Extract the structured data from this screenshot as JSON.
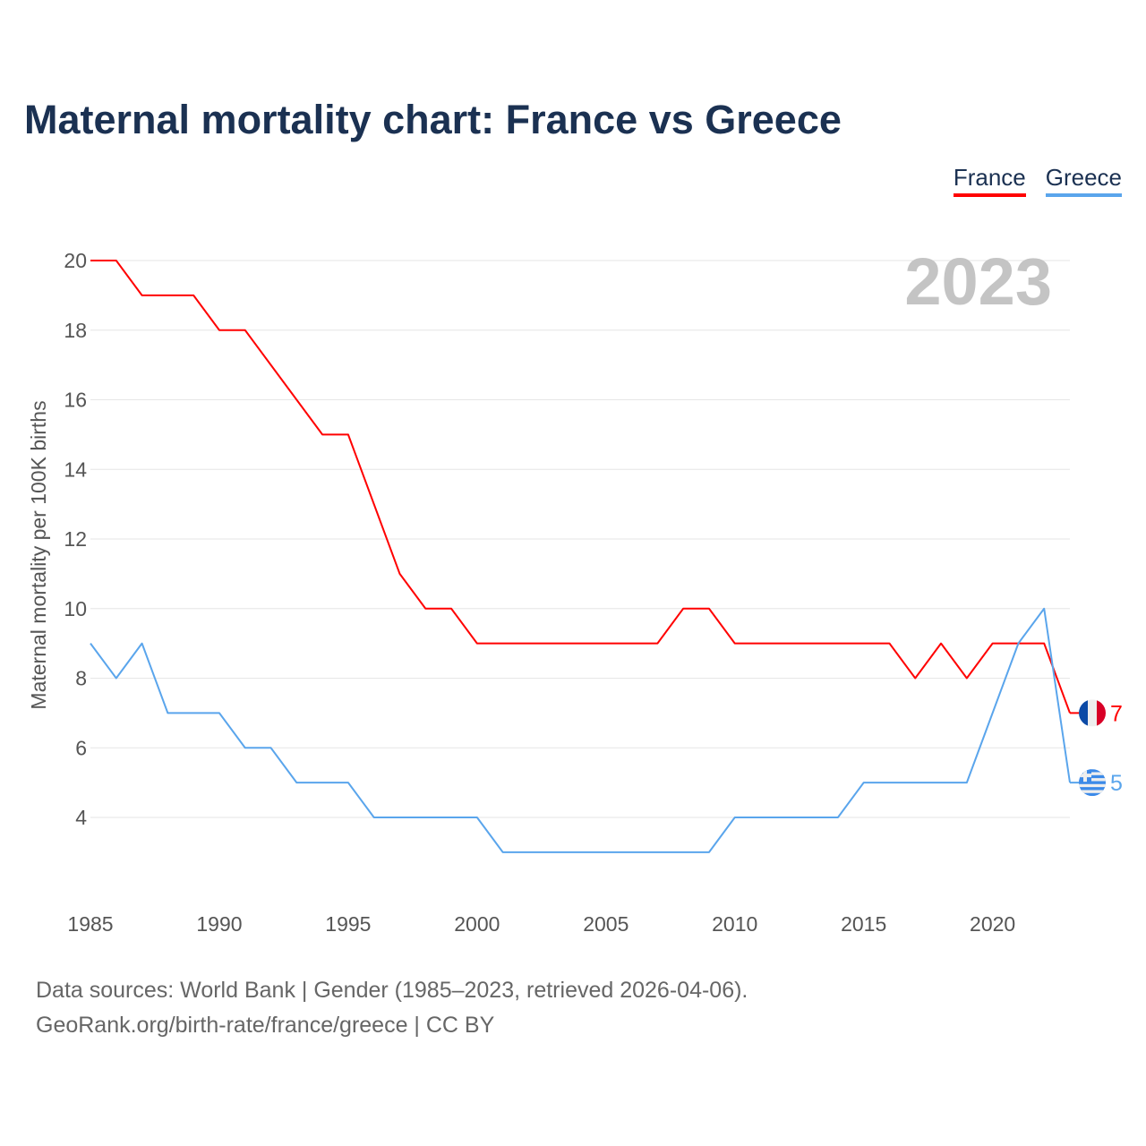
{
  "chart_data": {
    "type": "line",
    "title": "Maternal mortality chart: France vs Greece",
    "xlabel": "",
    "ylabel": "Maternal mortality per 100K births",
    "xlim": [
      1985,
      2023
    ],
    "ylim": [
      2,
      20
    ],
    "x_ticks": [
      1985,
      1990,
      1995,
      2000,
      2005,
      2010,
      2015,
      2020
    ],
    "y_ticks": [
      4,
      6,
      8,
      10,
      12,
      14,
      16,
      18,
      20
    ],
    "grid": true,
    "legend_position": "top-right",
    "year_label": "2023",
    "x": [
      1985,
      1986,
      1987,
      1988,
      1989,
      1990,
      1991,
      1992,
      1993,
      1994,
      1995,
      1996,
      1997,
      1998,
      1999,
      2000,
      2001,
      2002,
      2003,
      2004,
      2005,
      2006,
      2007,
      2008,
      2009,
      2010,
      2011,
      2012,
      2013,
      2014,
      2015,
      2016,
      2017,
      2018,
      2019,
      2020,
      2021,
      2022,
      2023
    ],
    "series": [
      {
        "name": "France",
        "color": "#ff0000",
        "end_label": "7",
        "values": [
          20,
          20,
          19,
          19,
          19,
          18,
          18,
          17,
          16,
          15,
          15,
          13,
          11,
          10,
          10,
          9,
          9,
          9,
          9,
          9,
          9,
          9,
          9,
          10,
          10,
          9,
          9,
          9,
          9,
          9,
          9,
          9,
          8,
          9,
          8,
          9,
          9,
          9,
          7
        ]
      },
      {
        "name": "Greece",
        "color": "#5aa5ec",
        "end_label": "5",
        "values": [
          9,
          8,
          9,
          7,
          7,
          7,
          6,
          6,
          5,
          5,
          5,
          4,
          4,
          4,
          4,
          4,
          3,
          3,
          3,
          3,
          3,
          3,
          3,
          3,
          3,
          4,
          4,
          4,
          4,
          4,
          5,
          5,
          5,
          5,
          5,
          7,
          9,
          10,
          5
        ]
      }
    ]
  },
  "footer": {
    "line1": "Data sources: World Bank | Gender (1985–2023, retrieved 2026-04-06).",
    "line2": "GeoRank.org/birth-rate/france/greece | CC BY"
  }
}
